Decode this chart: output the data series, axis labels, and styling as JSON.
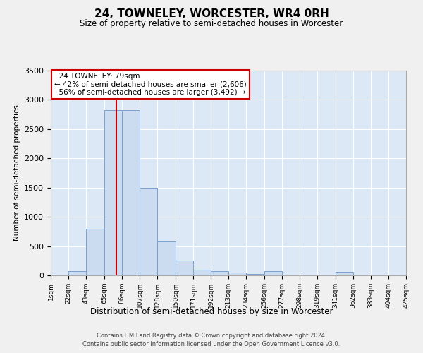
{
  "title": "24, TOWNELEY, WORCESTER, WR4 0RH",
  "subtitle": "Size of property relative to semi-detached houses in Worcester",
  "xlabel": "Distribution of semi-detached houses by size in Worcester",
  "ylabel": "Number of semi-detached properties",
  "property_size": 79,
  "property_label": "24 TOWNELEY: 79sqm",
  "pct_smaller": 42,
  "count_smaller": 2606,
  "pct_larger": 56,
  "count_larger": 3492,
  "bar_color": "#ccdcf0",
  "bar_edge_color": "#7aa0cc",
  "vline_color": "#cc0000",
  "bg_color": "#dce8f5",
  "grid_color": "#ffffff",
  "fig_bg_color": "#f0f0f0",
  "footer_line1": "Contains HM Land Registry data © Crown copyright and database right 2024.",
  "footer_line2": "Contains public sector information licensed under the Open Government Licence v3.0.",
  "bin_edges": [
    1,
    22,
    43,
    65,
    86,
    107,
    128,
    150,
    171,
    192,
    213,
    234,
    256,
    277,
    298,
    319,
    341,
    362,
    383,
    404,
    425
  ],
  "bin_labels": [
    "1sqm",
    "22sqm",
    "43sqm",
    "65sqm",
    "86sqm",
    "107sqm",
    "128sqm",
    "150sqm",
    "171sqm",
    "192sqm",
    "213sqm",
    "234sqm",
    "256sqm",
    "277sqm",
    "298sqm",
    "319sqm",
    "341sqm",
    "362sqm",
    "383sqm",
    "404sqm",
    "425sqm"
  ],
  "counts": [
    0,
    75,
    800,
    2820,
    2820,
    1500,
    580,
    250,
    100,
    70,
    45,
    30,
    70,
    0,
    0,
    0,
    60,
    0,
    0,
    0,
    0
  ],
  "ylim": [
    0,
    3500
  ],
  "yticks": [
    0,
    500,
    1000,
    1500,
    2000,
    2500,
    3000,
    3500
  ]
}
